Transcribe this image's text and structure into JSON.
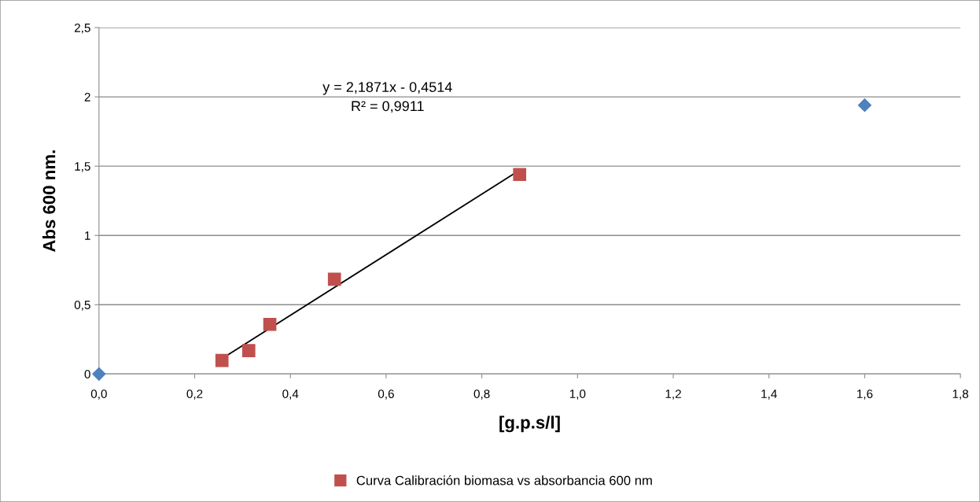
{
  "chart_data": {
    "type": "scatter",
    "xlabel": "[g.p.s/l]",
    "ylabel": "Abs 600 nm.",
    "series": [
      {
        "color": "#4f81bd",
        "marker": "diamond",
        "x": [
          0.0,
          1.6
        ],
        "values": [
          0.0,
          1.94
        ]
      },
      {
        "name": "Curva Calibración biomasa vs absorbancia 600 nm",
        "color": "#c0504d",
        "marker": "square",
        "x": [
          0.257,
          0.313,
          0.357,
          0.492,
          0.879
        ],
        "values": [
          0.098,
          0.169,
          0.358,
          0.684,
          1.44
        ]
      },
      {
        "type": "line",
        "color": "#000000",
        "marker": "none",
        "x": [
          0.257,
          0.879
        ],
        "values": [
          0.111,
          1.471
        ]
      }
    ],
    "annotations": [
      "y = 2,1871x - 0,4514",
      "R² = 0,9911"
    ],
    "xlim": [
      0,
      1.8
    ],
    "xticks": [
      {
        "value": 0,
        "label": "0,0"
      },
      {
        "value": 0.2,
        "label": "0,2"
      },
      {
        "value": 0.4,
        "label": "0,4"
      },
      {
        "value": 0.6,
        "label": "0,6"
      },
      {
        "value": 0.8,
        "label": "0,8"
      },
      {
        "value": 1.0,
        "label": "1,0"
      },
      {
        "value": 1.2,
        "label": "1,2"
      },
      {
        "value": 1.4,
        "label": "1,4"
      },
      {
        "value": 1.6,
        "label": "1,6"
      },
      {
        "value": 1.8,
        "label": "1,8"
      }
    ],
    "ylim": [
      0,
      2.5
    ],
    "yticks": [
      0,
      {
        "value": 0.5,
        "label": "0,5"
      },
      1,
      {
        "value": 1.5,
        "label": "1,5"
      },
      2,
      {
        "value": 2.5,
        "label": "2,5"
      }
    ],
    "grid": "y",
    "legend": "bottom"
  }
}
